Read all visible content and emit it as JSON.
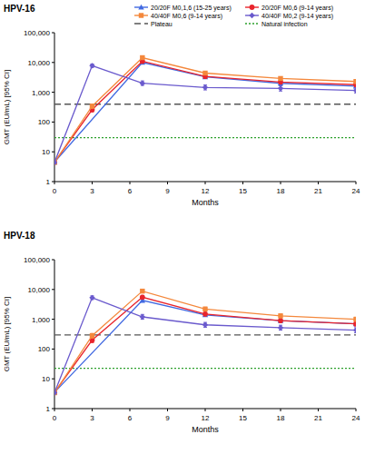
{
  "chart_data": [
    {
      "type": "line",
      "title": "HPV-16",
      "x_label": "Months",
      "y_label": "GMT (EU/mL) [95% CI]",
      "x": [
        0,
        3,
        7,
        12,
        18,
        24
      ],
      "xlim": [
        0,
        24
      ],
      "xticks": [
        0,
        3,
        6,
        9,
        12,
        15,
        18,
        21,
        24
      ],
      "ylim": [
        1,
        100000
      ],
      "yticks": [
        1,
        10,
        100,
        {
          "value": 1000,
          "label": "1,000"
        },
        {
          "value": 10000,
          "label": "10,000"
        },
        {
          "value": 100000,
          "label": "100,000"
        }
      ],
      "log": "y",
      "grid": false,
      "legend": "upper right",
      "series": [
        {
          "name": "20/20F M0,1,6 (15-25 years)",
          "color": "#4169e1",
          "marker": "triangle",
          "x": [
            0,
            7,
            12,
            18,
            24
          ],
          "values": [
            4.5,
            10000,
            3300,
            2000,
            1600
          ],
          "ci_low": [
            4.1,
            8900,
            2950,
            1750,
            1400
          ],
          "ci_high": [
            4.9,
            11200,
            3700,
            2300,
            1850
          ]
        },
        {
          "name": "20/20F M0,6 (9-14 years)",
          "color": "#e8242c",
          "marker": "circle",
          "values": [
            4.5,
            260,
            11000,
            3400,
            2200,
            1800
          ],
          "ci_low": [
            4.1,
            220,
            9700,
            3000,
            1900,
            1550
          ],
          "ci_high": [
            4.9,
            310,
            12500,
            3850,
            2550,
            2100
          ]
        },
        {
          "name": "40/40F M0,6 (9-14 years)",
          "color": "#f4883c",
          "marker": "square",
          "values": [
            4.4,
            340,
            14500,
            4400,
            2900,
            2300
          ],
          "ci_low": [
            4.0,
            290,
            12800,
            3900,
            2550,
            2000
          ],
          "ci_high": [
            4.8,
            400,
            16500,
            5000,
            3300,
            2650
          ]
        },
        {
          "name": "40/40F M0,2 (9-14 years)",
          "color": "#6a5acd",
          "marker": "diamond",
          "values": [
            4.4,
            7800,
            2000,
            1450,
            1350,
            1150
          ],
          "ci_low": [
            4.0,
            6800,
            1700,
            1200,
            1100,
            950
          ],
          "ci_high": [
            4.8,
            8900,
            2400,
            1750,
            1650,
            1400
          ]
        }
      ],
      "reference_lines": [
        {
          "name": "Plateau",
          "value": 398.1,
          "color": "#555555",
          "line_style": "dashed"
        },
        {
          "name": "Natural infection",
          "value": 29.8,
          "color": "#2ca02c",
          "line_style": "dotted"
        }
      ]
    },
    {
      "type": "line",
      "title": "HPV-18",
      "x_label": "Months",
      "y_label": "GMT (EU/mL) [95% CI]",
      "x": [
        0,
        3,
        7,
        12,
        18,
        24
      ],
      "xlim": [
        0,
        24
      ],
      "xticks": [
        0,
        3,
        6,
        9,
        12,
        15,
        18,
        21,
        24
      ],
      "ylim": [
        1,
        100000
      ],
      "yticks": [
        1,
        10,
        100,
        {
          "value": 1000,
          "label": "1,000"
        },
        {
          "value": 10000,
          "label": "10,000"
        },
        {
          "value": 100000,
          "label": "100,000"
        }
      ],
      "log": "y",
      "grid": false,
      "series": [
        {
          "color": "#4169e1",
          "marker": "triangle",
          "x": [
            0,
            7,
            12,
            18,
            24
          ],
          "values": [
            3.5,
            4300,
            1400,
            900,
            700
          ],
          "ci_low": [
            3.2,
            3800,
            1250,
            790,
            610
          ],
          "ci_high": [
            3.8,
            4900,
            1580,
            1020,
            800
          ]
        },
        {
          "color": "#e8242c",
          "marker": "circle",
          "values": [
            3.5,
            200,
            5500,
            1500,
            900,
            700
          ],
          "ci_low": [
            3.2,
            165,
            4800,
            1320,
            780,
            600
          ],
          "ci_high": [
            3.8,
            245,
            6300,
            1700,
            1040,
            820
          ]
        },
        {
          "color": "#f4883c",
          "marker": "square",
          "values": [
            3.4,
            280,
            8800,
            2200,
            1300,
            1000
          ],
          "ci_low": [
            3.1,
            235,
            7700,
            1900,
            1120,
            860
          ],
          "ci_high": [
            3.7,
            335,
            10000,
            2550,
            1500,
            1170
          ]
        },
        {
          "color": "#6a5acd",
          "marker": "diamond",
          "values": [
            3.4,
            5300,
            1200,
            650,
            520,
            430
          ],
          "ci_low": [
            3.1,
            4600,
            1000,
            540,
            430,
            350
          ],
          "ci_high": [
            3.7,
            6100,
            1450,
            780,
            630,
            520
          ]
        }
      ],
      "reference_lines": [
        {
          "value": 297.3,
          "color": "#555555",
          "line_style": "dashed"
        },
        {
          "value": 22.6,
          "color": "#2ca02c",
          "line_style": "dotted"
        }
      ]
    }
  ]
}
